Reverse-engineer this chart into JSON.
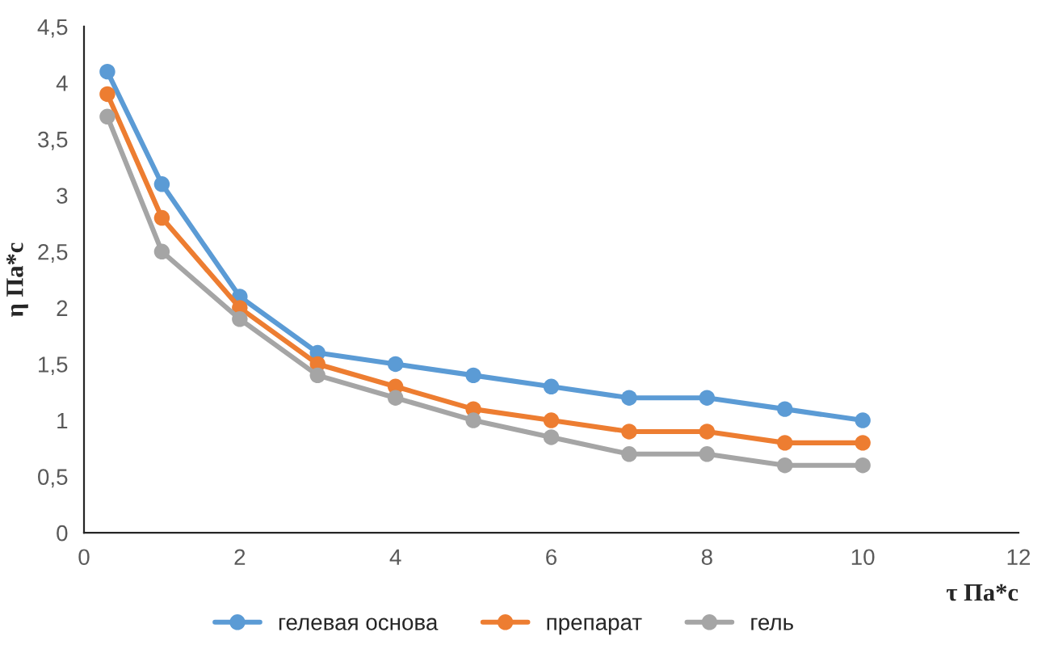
{
  "chart_data": {
    "type": "line",
    "xlabel": "τ Па*с",
    "ylabel": "η Па*с",
    "x": [
      0.3,
      1,
      2,
      3,
      4,
      5,
      6,
      7,
      8,
      9,
      10
    ],
    "series": [
      {
        "name": "гелевая основа",
        "color": "#5b9bd5",
        "values": [
          4.1,
          3.1,
          2.1,
          1.6,
          1.5,
          1.4,
          1.3,
          1.2,
          1.2,
          1.1,
          1.0
        ]
      },
      {
        "name": "препарат",
        "color": "#ed7d31",
        "values": [
          3.9,
          2.8,
          2.0,
          1.5,
          1.3,
          1.1,
          1.0,
          0.9,
          0.9,
          0.8,
          0.8
        ]
      },
      {
        "name": "гель",
        "color": "#a5a5a5",
        "values": [
          3.7,
          2.5,
          1.9,
          1.4,
          1.2,
          1.0,
          0.85,
          0.7,
          0.7,
          0.6,
          0.6
        ]
      }
    ],
    "xlim": [
      0,
      12
    ],
    "xticks": [
      0,
      2,
      4,
      6,
      8,
      10,
      12
    ],
    "ylim": [
      0,
      4.5
    ],
    "yticks": [
      0,
      {
        "value": 0.5,
        "label": "0,5"
      },
      1,
      {
        "value": 1.5,
        "label": "1,5"
      },
      2,
      {
        "value": 2.5,
        "label": "2,5"
      },
      3,
      {
        "value": 3.5,
        "label": "3,5"
      },
      4,
      {
        "value": 4.5,
        "label": "4,5"
      }
    ],
    "grid": false,
    "legend": "bottom",
    "marker": "circle",
    "line_style": "solid"
  }
}
